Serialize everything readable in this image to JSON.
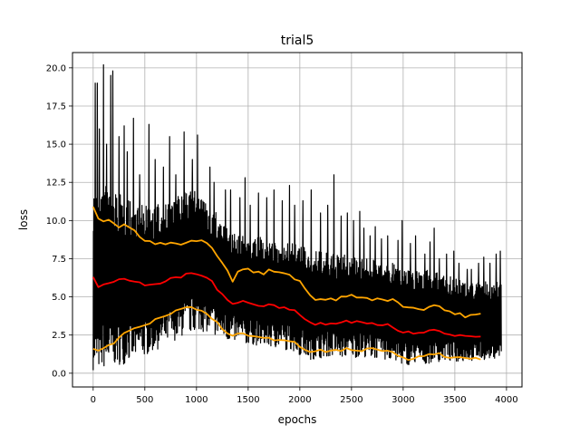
{
  "chart_data": {
    "type": "line",
    "title": "trial5",
    "xlabel": "epochs",
    "ylabel": "loss",
    "xlim": [
      -200,
      4150
    ],
    "ylim": [
      -0.9,
      21.0
    ],
    "grid": true,
    "legend": "none",
    "x_ticks": [
      0,
      500,
      1000,
      1500,
      2000,
      2500,
      3000,
      3500,
      4000
    ],
    "x_tick_labels": [
      "0",
      "500",
      "1000",
      "1500",
      "2000",
      "2500",
      "3000",
      "3500",
      "4000"
    ],
    "y_ticks": [
      0.0,
      2.5,
      5.0,
      7.5,
      10.0,
      12.5,
      15.0,
      17.5,
      20.0
    ],
    "y_tick_labels": [
      "0.0",
      "2.5",
      "5.0",
      "7.5",
      "10.0",
      "12.5",
      "15.0",
      "17.5",
      "20.0"
    ],
    "colors": {
      "raw": "#000000",
      "mean": "#ff0000",
      "band": "#ffa500",
      "grid": "#b0b0b0"
    },
    "series": [
      {
        "role": "raw",
        "color": "#000000",
        "envelope_x": [
          0,
          100,
          200,
          300,
          400,
          500,
          600,
          700,
          800,
          900,
          1000,
          1100,
          1200,
          1300,
          1400,
          1500,
          1600,
          1700,
          1800,
          1900,
          2000,
          2100,
          2200,
          2300,
          2400,
          2500,
          2600,
          2700,
          2800,
          2900,
          3000,
          3100,
          3200,
          3300,
          3400,
          3500,
          3600,
          3700,
          3800,
          3900,
          3950
        ],
        "envelope_low": [
          0.2,
          0.3,
          0.5,
          0.6,
          0.9,
          1.1,
          1.5,
          1.8,
          2.2,
          2.5,
          2.8,
          2.7,
          2.4,
          2.1,
          2.0,
          1.9,
          1.8,
          1.7,
          1.6,
          1.5,
          1.2,
          0.9,
          1.0,
          1.1,
          1.0,
          1.0,
          1.1,
          1.0,
          0.9,
          0.8,
          0.5,
          0.6,
          0.6,
          0.7,
          0.8,
          0.7,
          0.8,
          0.8,
          0.9,
          1.0,
          1.1
        ],
        "envelope_high": [
          12.0,
          12.5,
          12.0,
          11.5,
          11.2,
          11.0,
          11.0,
          11.2,
          11.5,
          12.0,
          12.0,
          11.0,
          10.5,
          9.5,
          9.0,
          9.0,
          9.0,
          8.5,
          8.5,
          8.5,
          8.5,
          8.0,
          8.0,
          7.8,
          7.8,
          7.8,
          7.5,
          7.5,
          7.2,
          7.2,
          7.0,
          6.8,
          6.8,
          6.6,
          6.5,
          6.2,
          6.0,
          6.0,
          6.0,
          6.0,
          6.0
        ],
        "spikes": [
          [
            20,
            19.0
          ],
          [
            40,
            19.0
          ],
          [
            60,
            16.0
          ],
          [
            100,
            20.2
          ],
          [
            130,
            15.0
          ],
          [
            170,
            19.5
          ],
          [
            190,
            19.8
          ],
          [
            250,
            15.5
          ],
          [
            300,
            16.2
          ],
          [
            330,
            14.5
          ],
          [
            390,
            16.7
          ],
          [
            450,
            13.0
          ],
          [
            540,
            16.3
          ],
          [
            600,
            14.0
          ],
          [
            680,
            13.5
          ],
          [
            740,
            15.5
          ],
          [
            800,
            13.0
          ],
          [
            880,
            15.8
          ],
          [
            960,
            14.0
          ],
          [
            1010,
            15.6
          ],
          [
            1130,
            13.5
          ],
          [
            1170,
            12.5
          ],
          [
            1280,
            12.0
          ],
          [
            1330,
            12.0
          ],
          [
            1420,
            11.5
          ],
          [
            1470,
            12.8
          ],
          [
            1520,
            11.0
          ],
          [
            1600,
            11.8
          ],
          [
            1680,
            11.5
          ],
          [
            1750,
            12.0
          ],
          [
            1830,
            11.3
          ],
          [
            1900,
            12.3
          ],
          [
            1950,
            11.0
          ],
          [
            2030,
            11.3
          ],
          [
            2110,
            12.0
          ],
          [
            2200,
            10.5
          ],
          [
            2270,
            11.0
          ],
          [
            2330,
            13.0
          ],
          [
            2400,
            10.3
          ],
          [
            2460,
            10.5
          ],
          [
            2520,
            10.0
          ],
          [
            2580,
            10.6
          ],
          [
            2620,
            9.5
          ],
          [
            2680,
            9.0
          ],
          [
            2730,
            9.6
          ],
          [
            2790,
            8.8
          ],
          [
            2850,
            9.0
          ],
          [
            2950,
            8.7
          ],
          [
            2990,
            10.0
          ],
          [
            3070,
            8.5
          ],
          [
            3120,
            9.0
          ],
          [
            3210,
            7.8
          ],
          [
            3260,
            8.6
          ],
          [
            3300,
            9.5
          ],
          [
            3350,
            7.5
          ],
          [
            3420,
            7.8
          ],
          [
            3490,
            8.0
          ],
          [
            3540,
            7.2
          ],
          [
            3620,
            6.8
          ],
          [
            3660,
            6.8
          ],
          [
            3730,
            7.2
          ],
          [
            3780,
            7.6
          ],
          [
            3840,
            7.2
          ],
          [
            3900,
            7.8
          ],
          [
            3940,
            8.0
          ]
        ]
      },
      {
        "role": "mean",
        "color": "#ff0000",
        "x": [
          0,
          50,
          100,
          150,
          200,
          250,
          300,
          350,
          400,
          450,
          500,
          550,
          600,
          650,
          700,
          750,
          800,
          850,
          900,
          950,
          1000,
          1050,
          1100,
          1150,
          1200,
          1250,
          1300,
          1350,
          1400,
          1450,
          1500,
          1550,
          1600,
          1650,
          1700,
          1750,
          1800,
          1850,
          1900,
          1950,
          2000,
          2050,
          2100,
          2150,
          2200,
          2250,
          2300,
          2350,
          2400,
          2450,
          2500,
          2550,
          2600,
          2650,
          2700,
          2750,
          2800,
          2850,
          2900,
          2950,
          3000,
          3050,
          3100,
          3150,
          3200,
          3250,
          3300,
          3350,
          3400,
          3450,
          3500,
          3550,
          3600,
          3650,
          3700,
          3750
        ],
        "y": [
          6.3,
          5.6,
          5.8,
          5.9,
          6.0,
          6.1,
          6.2,
          6.1,
          6.0,
          5.9,
          5.7,
          5.8,
          5.8,
          5.9,
          6.0,
          6.2,
          6.3,
          6.3,
          6.5,
          6.5,
          6.5,
          6.4,
          6.2,
          6.0,
          5.5,
          5.2,
          4.8,
          4.5,
          4.6,
          4.7,
          4.6,
          4.5,
          4.4,
          4.4,
          4.5,
          4.5,
          4.3,
          4.3,
          4.2,
          4.1,
          3.8,
          3.5,
          3.3,
          3.2,
          3.3,
          3.2,
          3.3,
          3.2,
          3.3,
          3.4,
          3.3,
          3.4,
          3.3,
          3.2,
          3.3,
          3.2,
          3.1,
          3.2,
          3.0,
          2.8,
          2.7,
          2.7,
          2.6,
          2.6,
          2.7,
          2.8,
          2.9,
          2.8,
          2.6,
          2.5,
          2.4,
          2.5,
          2.4,
          2.4,
          2.4,
          2.4
        ]
      },
      {
        "role": "upper",
        "color": "#ffa500",
        "x": [
          0,
          50,
          100,
          150,
          200,
          250,
          300,
          350,
          400,
          450,
          500,
          550,
          600,
          650,
          700,
          750,
          800,
          850,
          900,
          950,
          1000,
          1050,
          1100,
          1150,
          1200,
          1250,
          1300,
          1350,
          1400,
          1450,
          1500,
          1550,
          1600,
          1650,
          1700,
          1750,
          1800,
          1850,
          1900,
          1950,
          2000,
          2050,
          2100,
          2150,
          2200,
          2250,
          2300,
          2350,
          2400,
          2450,
          2500,
          2550,
          2600,
          2650,
          2700,
          2750,
          2800,
          2850,
          2900,
          2950,
          3000,
          3050,
          3100,
          3150,
          3200,
          3250,
          3300,
          3350,
          3400,
          3450,
          3500,
          3550,
          3600,
          3650,
          3700,
          3750
        ],
        "y": [
          10.9,
          10.1,
          9.9,
          10.0,
          9.8,
          9.5,
          9.8,
          9.6,
          9.3,
          8.9,
          8.7,
          8.6,
          8.4,
          8.5,
          8.4,
          8.6,
          8.5,
          8.4,
          8.5,
          8.7,
          8.6,
          8.7,
          8.5,
          8.2,
          7.7,
          7.2,
          6.7,
          6.0,
          6.6,
          6.8,
          6.9,
          6.6,
          6.6,
          6.5,
          6.8,
          6.7,
          6.6,
          6.5,
          6.5,
          6.2,
          6.0,
          5.6,
          5.1,
          4.8,
          4.9,
          4.8,
          4.9,
          4.8,
          5.0,
          5.0,
          5.1,
          5.0,
          4.9,
          4.9,
          4.8,
          4.9,
          4.8,
          4.7,
          4.8,
          4.6,
          4.4,
          4.3,
          4.3,
          4.2,
          4.2,
          4.3,
          4.5,
          4.4,
          4.1,
          4.0,
          3.8,
          3.9,
          3.7,
          3.8,
          3.8,
          3.9
        ]
      },
      {
        "role": "lower",
        "color": "#ffa500",
        "x": [
          0,
          50,
          100,
          150,
          200,
          250,
          300,
          350,
          400,
          450,
          500,
          550,
          600,
          650,
          700,
          750,
          800,
          850,
          900,
          950,
          1000,
          1050,
          1100,
          1150,
          1200,
          1250,
          1300,
          1350,
          1400,
          1450,
          1500,
          1550,
          1600,
          1650,
          1700,
          1750,
          1800,
          1850,
          1900,
          1950,
          2000,
          2050,
          2100,
          2150,
          2200,
          2250,
          2300,
          2350,
          2400,
          2450,
          2500,
          2550,
          2600,
          2650,
          2700,
          2750,
          2800,
          2850,
          2900,
          2950,
          3000,
          3050,
          3100,
          3150,
          3200,
          3250,
          3300,
          3350,
          3400,
          3450,
          3500,
          3550,
          3600,
          3650,
          3700,
          3750
        ],
        "y": [
          1.6,
          1.5,
          1.6,
          1.8,
          2.0,
          2.3,
          2.6,
          2.8,
          2.9,
          3.0,
          3.2,
          3.3,
          3.5,
          3.6,
          3.8,
          3.9,
          4.1,
          4.2,
          4.3,
          4.3,
          4.2,
          4.1,
          3.9,
          3.6,
          3.3,
          2.9,
          2.6,
          2.5,
          2.6,
          2.6,
          2.5,
          2.4,
          2.4,
          2.3,
          2.3,
          2.2,
          2.2,
          2.2,
          2.1,
          2.0,
          1.7,
          1.5,
          1.4,
          1.4,
          1.5,
          1.4,
          1.5,
          1.5,
          1.5,
          1.6,
          1.5,
          1.5,
          1.4,
          1.6,
          1.6,
          1.6,
          1.5,
          1.5,
          1.4,
          1.2,
          1.0,
          0.9,
          1.0,
          1.1,
          1.1,
          1.2,
          1.2,
          1.3,
          1.1,
          1.0,
          1.0,
          1.0,
          1.0,
          1.0,
          1.0,
          0.9
        ]
      }
    ]
  }
}
